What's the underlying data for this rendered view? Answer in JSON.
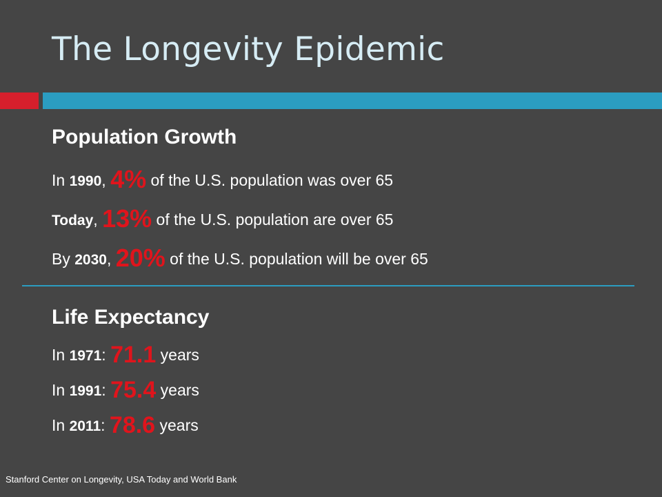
{
  "title": "The Longevity Epidemic",
  "colors": {
    "background": "#454545",
    "accent_red": "#d61f2c",
    "accent_blue": "#2b9dc1",
    "highlight": "#e0141c",
    "title": "#d6ecf4"
  },
  "population": {
    "heading": "Population Growth",
    "lines": [
      {
        "prefix": "In ",
        "year": "1990",
        "sep": ", ",
        "value": "4%",
        "suffix": " of the U.S. population was over 65"
      },
      {
        "prefix": "",
        "year": "Today",
        "sep": ", ",
        "value": "13%",
        "suffix": " of the U.S. population are over 65"
      },
      {
        "prefix": "By ",
        "year": "2030",
        "sep": ", ",
        "value": "20%",
        "suffix": " of the U.S. population will be over 65"
      }
    ]
  },
  "life_expectancy": {
    "heading": "Life Expectancy",
    "lines": [
      {
        "prefix": "In ",
        "year": "1971",
        "sep": ": ",
        "value": "71.1",
        "suffix": " years"
      },
      {
        "prefix": "In ",
        "year": "1991",
        "sep": ": ",
        "value": "75.4",
        "suffix": " years"
      },
      {
        "prefix": "In ",
        "year": "2011",
        "sep": ": ",
        "value": "78.6",
        "suffix": " years"
      }
    ]
  },
  "footer": "Stanford Center on Longevity, USA Today and World Bank"
}
